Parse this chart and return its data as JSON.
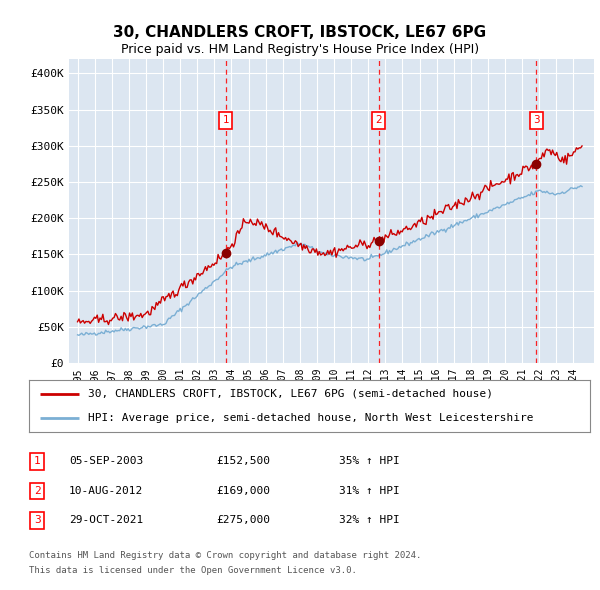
{
  "title1": "30, CHANDLERS CROFT, IBSTOCK, LE67 6PG",
  "title2": "Price paid vs. HM Land Registry's House Price Index (HPI)",
  "plot_bg_color": "#dce6f1",
  "hpi_color": "#7bafd4",
  "price_color": "#cc0000",
  "ylim": [
    0,
    420000
  ],
  "yticks": [
    0,
    50000,
    100000,
    150000,
    200000,
    250000,
    300000,
    350000,
    400000
  ],
  "ytick_labels": [
    "£0",
    "£50K",
    "£100K",
    "£150K",
    "£200K",
    "£250K",
    "£300K",
    "£350K",
    "£400K"
  ],
  "sale_year_nums": [
    2003.67,
    2012.61,
    2021.83
  ],
  "sale_prices": [
    152500,
    169000,
    275000
  ],
  "sale_labels": [
    "1",
    "2",
    "3"
  ],
  "sale_info": [
    {
      "num": "1",
      "date": "05-SEP-2003",
      "price": "£152,500",
      "change": "35% ↑ HPI"
    },
    {
      "num": "2",
      "date": "10-AUG-2012",
      "price": "£169,000",
      "change": "31% ↑ HPI"
    },
    {
      "num": "3",
      "date": "29-OCT-2021",
      "price": "£275,000",
      "change": "32% ↑ HPI"
    }
  ],
  "legend_line1": "30, CHANDLERS CROFT, IBSTOCK, LE67 6PG (semi-detached house)",
  "legend_line2": "HPI: Average price, semi-detached house, North West Leicestershire",
  "footer1": "Contains HM Land Registry data © Crown copyright and database right 2024.",
  "footer2": "This data is licensed under the Open Government Licence v3.0."
}
